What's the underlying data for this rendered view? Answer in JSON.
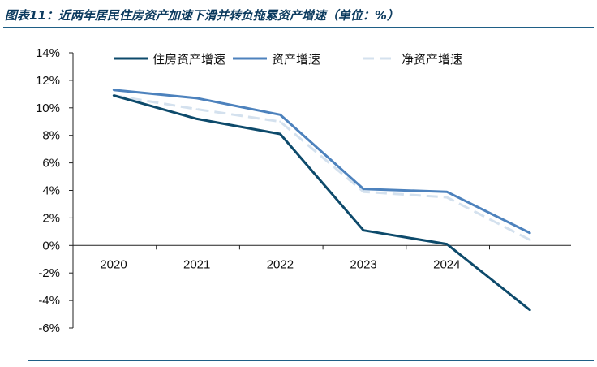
{
  "header": {
    "title": "图表11：近两年居民住房资产加速下滑并转负拖累资产增速（单位：%）"
  },
  "chart_data": {
    "type": "line",
    "title": "图表11：近两年居民住房资产加速下滑并转负拖累资产增速（单位：%）",
    "xlabel": "",
    "ylabel": "",
    "categories": [
      "2020",
      "2021",
      "2022",
      "2023",
      "2024",
      ""
    ],
    "y_ticks": [
      "14%",
      "12%",
      "10%",
      "8%",
      "6%",
      "4%",
      "2%",
      "0%",
      "-2%",
      "-4%",
      "-6%"
    ],
    "ylim": [
      -6,
      14
    ],
    "grid": false,
    "legend": "top",
    "series": [
      {
        "name": "住房资产增速",
        "color": "#0d4a6b",
        "dash": "solid",
        "values": [
          10.9,
          9.2,
          8.1,
          1.1,
          0.1,
          -4.7
        ]
      },
      {
        "name": "资产增速",
        "color": "#4d82bd",
        "dash": "solid",
        "values": [
          11.3,
          10.7,
          9.5,
          4.1,
          3.9,
          0.9
        ]
      },
      {
        "name": "净资产增速",
        "color": "#d4e1ee",
        "dash": "dashed",
        "values": [
          10.9,
          9.9,
          9.0,
          3.9,
          3.5,
          0.4
        ]
      }
    ]
  }
}
